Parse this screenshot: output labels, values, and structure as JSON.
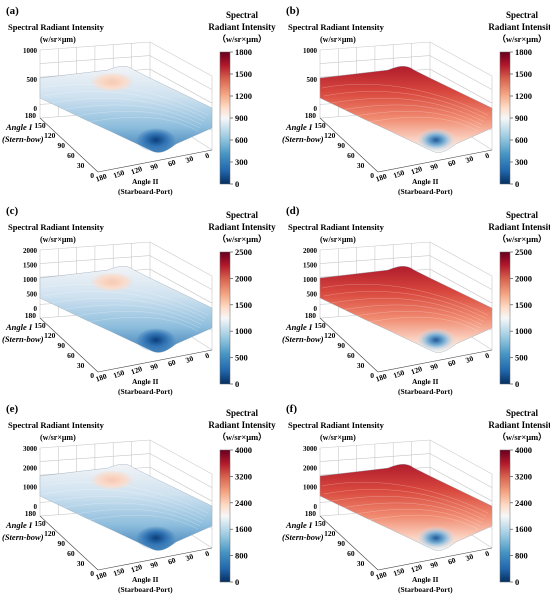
{
  "figure": {
    "panels": [
      {
        "label": "(a)",
        "zlabel": "Spectral Radiant Intensity",
        "zunit": "(w/sr×μm)",
        "zticks": [
          "0",
          "500",
          "1000"
        ],
        "angle1_ticks": [
          "0",
          "30",
          "60",
          "90",
          "120",
          "150",
          "180"
        ],
        "angle1_label_1": "Angle I",
        "angle1_label_2": "(Stern-bow)",
        "angle2_ticks": [
          "180",
          "150",
          "120",
          "90",
          "60",
          "30",
          "0"
        ],
        "angle2_label_1": "Angle II",
        "angle2_label_2": "(Starboard-Port)",
        "colorbar_title_1": "Spectral",
        "colorbar_title_2": "Radiant Intensity",
        "colorbar_unit": "（w/sr×μm）",
        "colorbar_ticks": [
          "0",
          "300",
          "600",
          "900",
          "1200",
          "1500",
          "1800"
        ],
        "scheme": "low"
      },
      {
        "label": "(b)",
        "zlabel": "Spectral Radiant Intensity",
        "zunit": "(w/sr×μm)",
        "zticks": [
          "0",
          "500",
          "1000"
        ],
        "angle1_ticks": [
          "0",
          "30",
          "60",
          "90",
          "120",
          "150",
          "180"
        ],
        "angle1_label_1": "Angle I",
        "angle1_label_2": "(Stern-bow)",
        "angle2_ticks": [
          "180",
          "150",
          "120",
          "90",
          "60",
          "30",
          "0"
        ],
        "angle2_label_1": "Angle II",
        "angle2_label_2": "(Starboard-Port)",
        "colorbar_title_1": "Spectral",
        "colorbar_title_2": "Radiant Intensity",
        "colorbar_unit": "（w/sr×μm）",
        "colorbar_ticks": [
          "0",
          "300",
          "600",
          "900",
          "1200",
          "1500",
          "1800"
        ],
        "scheme": "high"
      },
      {
        "label": "(c)",
        "zlabel": "Spectral Radiant Intensity",
        "zunit": "(w/sr×μm)",
        "zticks": [
          "0",
          "500",
          "1000",
          "1500",
          "2000"
        ],
        "angle1_ticks": [
          "0",
          "30",
          "60",
          "90",
          "120",
          "150",
          "180"
        ],
        "angle1_label_1": "Angle I",
        "angle1_label_2": "(Stern-bow)",
        "angle2_ticks": [
          "180",
          "150",
          "120",
          "90",
          "60",
          "30",
          "0"
        ],
        "angle2_label_1": "Angle II",
        "angle2_label_2": "(Starboard-Port)",
        "colorbar_title_1": "Spectral",
        "colorbar_title_2": "Radiant Intensity",
        "colorbar_unit": "（w/sr×μm）",
        "colorbar_ticks": [
          "0",
          "500",
          "1000",
          "1500",
          "2000",
          "2500"
        ],
        "scheme": "low"
      },
      {
        "label": "(d)",
        "zlabel": "Spectral Radiant Intensity",
        "zunit": "(w/sr×μm)",
        "zticks": [
          "0",
          "500",
          "1000",
          "1500",
          "2000"
        ],
        "angle1_ticks": [
          "0",
          "30",
          "60",
          "90",
          "120",
          "150",
          "180"
        ],
        "angle1_label_1": "Angle I",
        "angle1_label_2": "(Stern-bow)",
        "angle2_ticks": [
          "180",
          "150",
          "120",
          "90",
          "60",
          "30",
          "0"
        ],
        "angle2_label_1": "Angle II",
        "angle2_label_2": "(Starboard-Port)",
        "colorbar_title_1": "Spectral",
        "colorbar_title_2": "Radiant Intensity",
        "colorbar_unit": "（w/sr×μm）",
        "colorbar_ticks": [
          "0",
          "500",
          "1000",
          "1500",
          "2000",
          "2500"
        ],
        "scheme": "high"
      },
      {
        "label": "(e)",
        "zlabel": "Spectral Radiant Intensity",
        "zunit": "(w/sr×μm)",
        "zticks": [
          "0",
          "1000",
          "2000",
          "3000"
        ],
        "angle1_ticks": [
          "0",
          "30",
          "60",
          "90",
          "120",
          "150",
          "180"
        ],
        "angle1_label_1": "Angle I",
        "angle1_label_2": "(Stern-bow)",
        "angle2_ticks": [
          "180",
          "150",
          "120",
          "90",
          "60",
          "30",
          "0"
        ],
        "angle2_label_1": "Angle II",
        "angle2_label_2": "(Starboard-Port)",
        "colorbar_title_1": "Spectral",
        "colorbar_title_2": "Radiant Intensity",
        "colorbar_unit": "（w/sr×μm）",
        "colorbar_ticks": [
          "0",
          "800",
          "1600",
          "2400",
          "3200",
          "4000"
        ],
        "scheme": "low"
      },
      {
        "label": "(f)",
        "zlabel": "Spectral Radiant Intensity",
        "zunit": "(w/sr×μm)",
        "zticks": [
          "0",
          "1000",
          "2000",
          "3000"
        ],
        "angle1_ticks": [
          "0",
          "30",
          "60",
          "90",
          "120",
          "150",
          "180"
        ],
        "angle1_label_1": "Angle I",
        "angle1_label_2": "(Stern-bow)",
        "angle2_ticks": [
          "180",
          "150",
          "120",
          "90",
          "60",
          "30",
          "0"
        ],
        "angle2_label_1": "Angle II",
        "angle2_label_2": "(Starboard-Port)",
        "colorbar_title_1": "Spectral",
        "colorbar_title_2": "Radiant Intensity",
        "colorbar_unit": "（w/sr×μm）",
        "colorbar_ticks": [
          "0",
          "800",
          "1600",
          "2400",
          "3200",
          "4000"
        ],
        "scheme": "high"
      }
    ]
  },
  "chart_data": [
    {
      "type": "surface3d",
      "panel": "(a)",
      "x_axis": "Angle II (Starboard-Port)",
      "y_axis": "Angle I (Stern-bow)",
      "z_axis": "Spectral Radiant Intensity (w/sr×μm)",
      "x_range": [
        0,
        180
      ],
      "y_range": [
        0,
        180
      ],
      "zlim": [
        0,
        1000
      ],
      "colorbar_range": [
        0,
        1800
      ]
    },
    {
      "type": "surface3d",
      "panel": "(b)",
      "x_axis": "Angle II (Starboard-Port)",
      "y_axis": "Angle I (Stern-bow)",
      "z_axis": "Spectral Radiant Intensity (w/sr×μm)",
      "x_range": [
        0,
        180
      ],
      "y_range": [
        0,
        180
      ],
      "zlim": [
        0,
        1000
      ],
      "colorbar_range": [
        0,
        1800
      ]
    },
    {
      "type": "surface3d",
      "panel": "(c)",
      "x_axis": "Angle II (Starboard-Port)",
      "y_axis": "Angle I (Stern-bow)",
      "z_axis": "Spectral Radiant Intensity (w/sr×μm)",
      "x_range": [
        0,
        180
      ],
      "y_range": [
        0,
        180
      ],
      "zlim": [
        0,
        2000
      ],
      "colorbar_range": [
        0,
        2500
      ]
    },
    {
      "type": "surface3d",
      "panel": "(d)",
      "x_axis": "Angle II (Starboard-Port)",
      "y_axis": "Angle I (Stern-bow)",
      "z_axis": "Spectral Radiant Intensity (w/sr×μm)",
      "x_range": [
        0,
        180
      ],
      "y_range": [
        0,
        180
      ],
      "zlim": [
        0,
        2000
      ],
      "colorbar_range": [
        0,
        2500
      ]
    },
    {
      "type": "surface3d",
      "panel": "(e)",
      "x_axis": "Angle II (Starboard-Port)",
      "y_axis": "Angle I (Stern-bow)",
      "z_axis": "Spectral Radiant Intensity (w/sr×μm)",
      "x_range": [
        0,
        180
      ],
      "y_range": [
        0,
        180
      ],
      "zlim": [
        0,
        3000
      ],
      "colorbar_range": [
        0,
        4000
      ]
    },
    {
      "type": "surface3d",
      "panel": "(f)",
      "x_axis": "Angle II (Starboard-Port)",
      "y_axis": "Angle I (Stern-bow)",
      "z_axis": "Spectral Radiant Intensity (w/sr×μm)",
      "x_range": [
        0,
        180
      ],
      "y_range": [
        0,
        180
      ],
      "zlim": [
        0,
        3000
      ],
      "colorbar_range": [
        0,
        4000
      ]
    }
  ],
  "colors": {
    "colormap": [
      "#053061",
      "#2166ac",
      "#4393c3",
      "#92c5de",
      "#d1e5f0",
      "#f7f7f7",
      "#fddbc7",
      "#f4a582",
      "#d6604d",
      "#b2182b",
      "#67001f"
    ]
  }
}
